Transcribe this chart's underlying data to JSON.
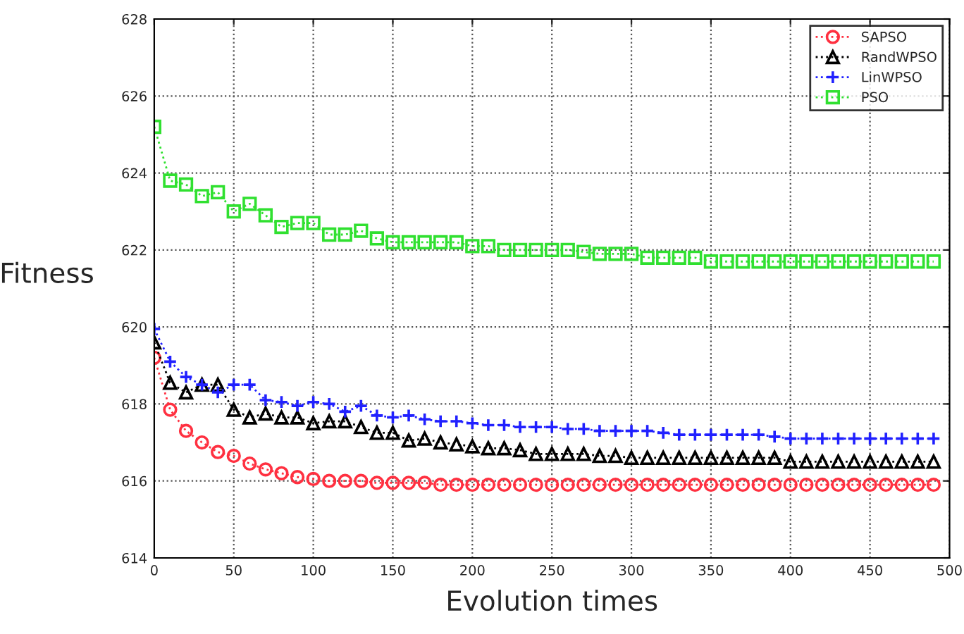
{
  "chart_data": {
    "type": "line",
    "xlabel": "Evolution times",
    "ylabel": "Fitness",
    "x": [
      0,
      10,
      20,
      30,
      40,
      50,
      60,
      70,
      80,
      90,
      100,
      110,
      120,
      130,
      140,
      150,
      160,
      170,
      180,
      190,
      200,
      210,
      220,
      230,
      240,
      250,
      260,
      270,
      280,
      290,
      300,
      310,
      320,
      330,
      340,
      350,
      360,
      370,
      380,
      390,
      400,
      410,
      420,
      430,
      440,
      450,
      460,
      470,
      480,
      490
    ],
    "series": [
      {
        "name": "SAPSO",
        "color": "#ff3040",
        "marker": "circle",
        "values": [
          619.2,
          617.85,
          617.3,
          617.0,
          616.75,
          616.65,
          616.45,
          616.3,
          616.2,
          616.1,
          616.05,
          616.0,
          616.0,
          616.0,
          615.95,
          615.95,
          615.95,
          615.95,
          615.9,
          615.9,
          615.9,
          615.9,
          615.9,
          615.9,
          615.9,
          615.9,
          615.9,
          615.9,
          615.9,
          615.9,
          615.9,
          615.9,
          615.9,
          615.9,
          615.9,
          615.9,
          615.9,
          615.9,
          615.9,
          615.9,
          615.9,
          615.9,
          615.9,
          615.9,
          615.9,
          615.9,
          615.9,
          615.9,
          615.9,
          615.9
        ]
      },
      {
        "name": "RandWPSO",
        "color": "#000000",
        "marker": "triangle",
        "values": [
          619.6,
          618.55,
          618.3,
          618.5,
          618.5,
          617.85,
          617.65,
          617.75,
          617.65,
          617.65,
          617.5,
          617.55,
          617.55,
          617.4,
          617.25,
          617.25,
          617.05,
          617.1,
          617.0,
          616.95,
          616.9,
          616.85,
          616.85,
          616.8,
          616.7,
          616.7,
          616.7,
          616.7,
          616.65,
          616.65,
          616.6,
          616.6,
          616.6,
          616.6,
          616.6,
          616.6,
          616.6,
          616.6,
          616.6,
          616.6,
          616.5,
          616.5,
          616.5,
          616.5,
          616.5,
          616.5,
          616.5,
          616.5,
          616.5,
          616.5
        ]
      },
      {
        "name": "LinWPSO",
        "color": "#2020ff",
        "marker": "cross",
        "values": [
          619.95,
          619.1,
          618.7,
          618.5,
          618.3,
          618.5,
          618.5,
          618.1,
          618.05,
          617.95,
          618.05,
          618.0,
          617.8,
          617.95,
          617.7,
          617.65,
          617.7,
          617.6,
          617.55,
          617.55,
          617.5,
          617.45,
          617.45,
          617.4,
          617.4,
          617.4,
          617.35,
          617.35,
          617.3,
          617.3,
          617.3,
          617.3,
          617.25,
          617.2,
          617.2,
          617.2,
          617.2,
          617.2,
          617.2,
          617.15,
          617.1,
          617.1,
          617.1,
          617.1,
          617.1,
          617.1,
          617.1,
          617.1,
          617.1,
          617.1
        ]
      },
      {
        "name": "PSO",
        "color": "#30e030",
        "marker": "square",
        "values": [
          625.2,
          623.8,
          623.7,
          623.4,
          623.5,
          623.0,
          623.2,
          622.9,
          622.6,
          622.7,
          622.7,
          622.4,
          622.4,
          622.5,
          622.3,
          622.2,
          622.2,
          622.2,
          622.2,
          622.2,
          622.1,
          622.1,
          622.0,
          622.0,
          622.0,
          622.0,
          622.0,
          621.95,
          621.9,
          621.9,
          621.9,
          621.8,
          621.8,
          621.8,
          621.8,
          621.7,
          621.7,
          621.7,
          621.7,
          621.7,
          621.7,
          621.7,
          621.7,
          621.7,
          621.7,
          621.7,
          621.7,
          621.7,
          621.7,
          621.7
        ]
      }
    ],
    "xlim": [
      0,
      500
    ],
    "xticks": [
      0,
      50,
      100,
      150,
      200,
      250,
      300,
      350,
      400,
      450,
      500
    ],
    "ylim": [
      614,
      628
    ],
    "yticks": [
      614,
      616,
      618,
      620,
      622,
      624,
      626,
      628
    ],
    "grid": true,
    "legend": "top right",
    "line_style": "dotted"
  }
}
